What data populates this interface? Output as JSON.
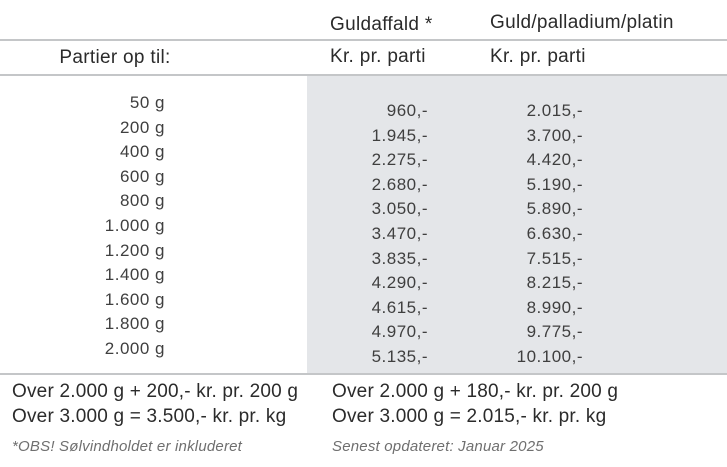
{
  "header": {
    "partier_label": "Partier op til:",
    "col_guldaffald": "Guldaffald *",
    "col_guld_palladium_platin": "Guld/palladium/platin",
    "guldaffald_unit": "Kr. pr. parti",
    "gpp_unit": "Kr. pr. parti"
  },
  "table": {
    "rows": [
      {
        "weight": "50 g",
        "guldaffald": "960,-",
        "guld_palladium_platin": "2.015,-"
      },
      {
        "weight": "200 g",
        "guldaffald": "1.945,-",
        "guld_palladium_platin": "3.700,-"
      },
      {
        "weight": "400 g",
        "guldaffald": "2.275,-",
        "guld_palladium_platin": "4.420,-"
      },
      {
        "weight": "600 g",
        "guldaffald": "2.680,-",
        "guld_palladium_platin": "5.190,-"
      },
      {
        "weight": "800 g",
        "guldaffald": "3.050,-",
        "guld_palladium_platin": "5.890,-"
      },
      {
        "weight": "1.000 g",
        "guldaffald": "3.470,-",
        "guld_palladium_platin": "6.630,-"
      },
      {
        "weight": "1.200 g",
        "guldaffald": "3.835,-",
        "guld_palladium_platin": "7.515,-"
      },
      {
        "weight": "1.400 g",
        "guldaffald": "4.290,-",
        "guld_palladium_platin": "8.215,-"
      },
      {
        "weight": "1.600 g",
        "guldaffald": "4.615,-",
        "guld_palladium_platin": "8.990,-"
      },
      {
        "weight": "1.800 g",
        "guldaffald": "4.970,-",
        "guld_palladium_platin": "9.775,-"
      },
      {
        "weight": "2.000 g",
        "guldaffald": "5.135,-",
        "guld_palladium_platin": "10.100,-"
      }
    ]
  },
  "footer": {
    "guldaffald_over_2000": "Over 2.000 g + 200,- kr. pr. 200 g",
    "guldaffald_over_3000": "Over 3.000 g = 3.500,- kr. pr. kg",
    "guldaffald_note": "*OBS! Sølvindholdet er inkluderet",
    "gpp_over_2000": "Over 2.000 g + 180,- kr. pr. 200 g",
    "gpp_over_3000": "Over 3.000 g = 2.015,- kr. pr. kg",
    "gpp_note": "Senest opdateret: Januar 2025"
  },
  "colors": {
    "panel_bg": "#e4e6e9",
    "rule": "#c4c6c8",
    "heading_text": "#2b2b2b",
    "number_text": "#3f3f3f",
    "note_text": "#6f6f6f"
  }
}
